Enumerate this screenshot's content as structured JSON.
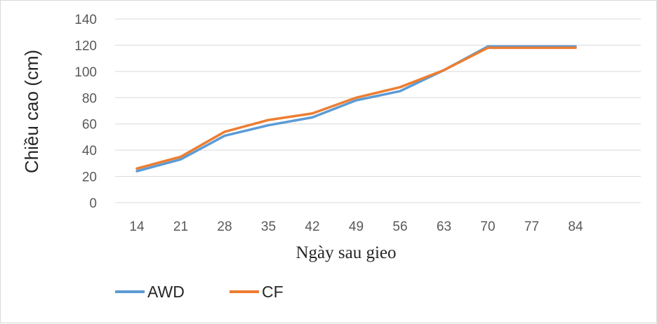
{
  "chart_data": {
    "type": "line",
    "title": "",
    "xlabel": "Ngày sau gieo",
    "ylabel": "Chiều cao (cm)",
    "categories": [
      "14",
      "21",
      "28",
      "35",
      "42",
      "49",
      "56",
      "63",
      "70",
      "77",
      "84"
    ],
    "ylim": [
      0,
      140
    ],
    "yticks": [
      "0",
      "20",
      "40",
      "60",
      "80",
      "100",
      "120",
      "140"
    ],
    "grid": true,
    "legend": "bottom-left",
    "series": [
      {
        "name": "AWD",
        "color": "#5b9bd5",
        "values": [
          24,
          33,
          51,
          59,
          65,
          78,
          85,
          101,
          119,
          119,
          119
        ]
      },
      {
        "name": "CF",
        "color": "#ed7d31",
        "values": [
          26,
          35,
          54,
          63,
          68,
          80,
          88,
          101,
          118,
          118,
          118
        ]
      }
    ]
  }
}
